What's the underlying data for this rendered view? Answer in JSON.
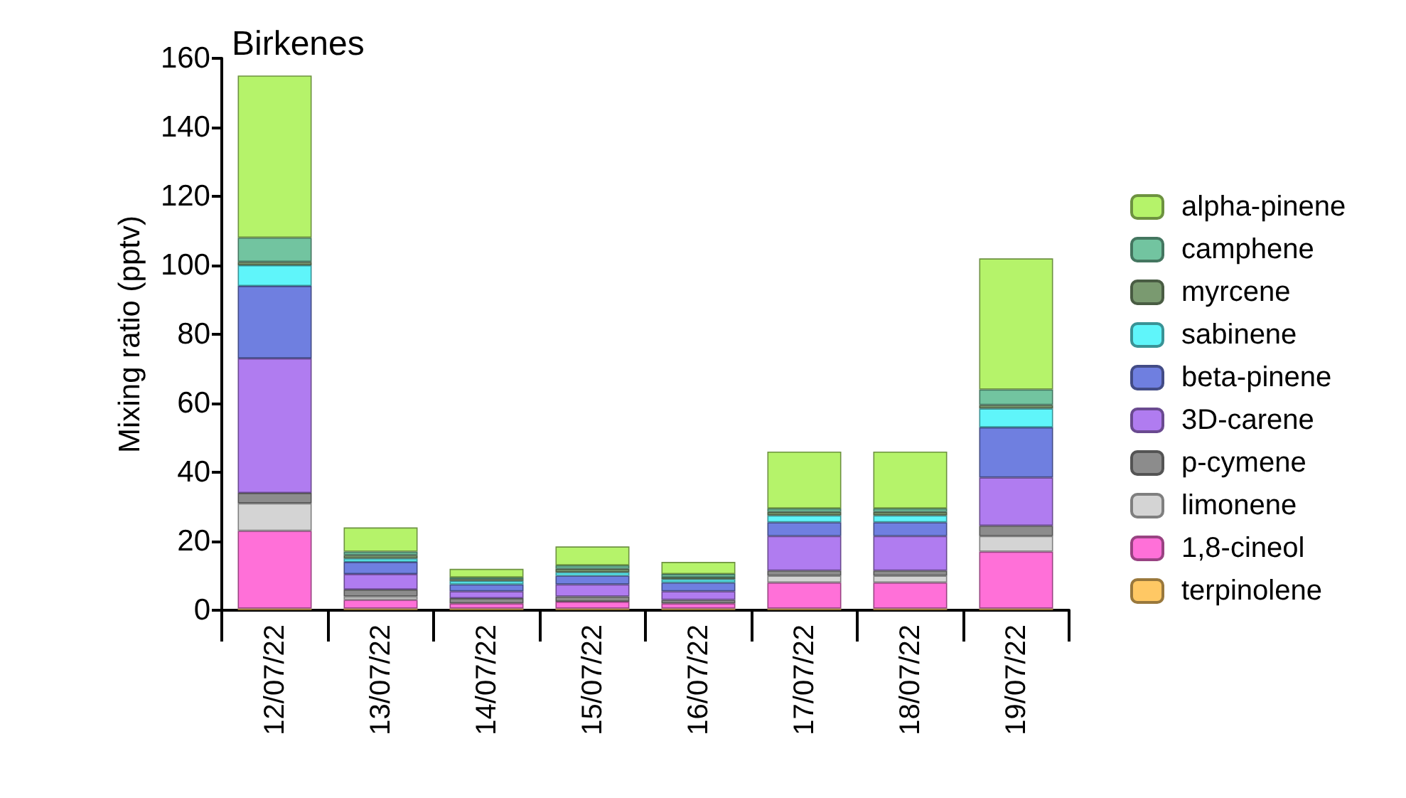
{
  "chart_data": {
    "type": "bar",
    "title": "Birkenes",
    "ylabel": "Mixing ratio (pptv)",
    "stacked": true,
    "legend": "right",
    "grid": false,
    "categories": [
      "12/07/22",
      "13/07/22",
      "14/07/22",
      "15/07/22",
      "16/07/22",
      "17/07/22",
      "18/07/22",
      "19/07/22"
    ],
    "ylim": [
      0,
      160
    ],
    "yticks": [
      0,
      20,
      40,
      60,
      80,
      100,
      120,
      140,
      160
    ],
    "series": [
      {
        "name": "terpinolene",
        "color": "#ffc864",
        "values": [
          0.5,
          0.5,
          0.5,
          0.5,
          0.5,
          0.5,
          0.5,
          0.5
        ]
      },
      {
        "name": "1,8-cineol",
        "color": "#ff70d8",
        "values": [
          22.5,
          2.5,
          1.5,
          2,
          1.5,
          7.5,
          7.5,
          16.5
        ]
      },
      {
        "name": "limonene",
        "color": "#d4d4d4",
        "values": [
          8,
          1,
          null,
          null,
          null,
          2,
          2,
          4.5
        ]
      },
      {
        "name": "p-cymene",
        "color": "#8c8c8c",
        "values": [
          3,
          2,
          1.5,
          1.5,
          1,
          1.5,
          1.5,
          3
        ]
      },
      {
        "name": "3D-carene",
        "color": "#b07cf0",
        "values": [
          39,
          4.5,
          2,
          3.5,
          2.5,
          10,
          10,
          14
        ]
      },
      {
        "name": "beta-pinene",
        "color": "#6f7fe0",
        "values": [
          21,
          3.5,
          2,
          2.5,
          2.5,
          4,
          4,
          14.5
        ]
      },
      {
        "name": "sabinene",
        "color": "#5ff5fa",
        "values": [
          6,
          1,
          1,
          1,
          1,
          2,
          2,
          5.5
        ]
      },
      {
        "name": "myrcene",
        "color": "#7a9a70",
        "values": [
          1,
          1,
          0.5,
          1,
          0.5,
          1,
          1,
          1
        ]
      },
      {
        "name": "camphene",
        "color": "#72c4a0",
        "values": [
          7,
          1,
          0.5,
          1,
          1,
          1,
          1,
          4.5
        ]
      },
      {
        "name": "alpha-pinene",
        "color": "#b5f36a",
        "values": [
          47,
          7,
          2.5,
          5.5,
          3.5,
          16.5,
          16.5,
          38
        ]
      }
    ]
  }
}
